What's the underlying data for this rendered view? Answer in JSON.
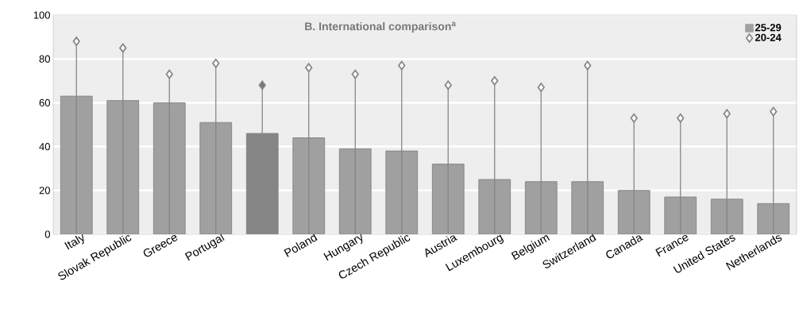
{
  "chart_data": {
    "type": "bar",
    "title": "B. International comparison$^{a}$",
    "categories": [
      "Italy",
      "Slovak Republic",
      "Greece",
      "Portugal",
      null,
      "Poland",
      "Hungary",
      "Czech Republic",
      "Austria",
      "Luxembourg",
      "Belgium",
      "Switzerland",
      "Canada",
      "France",
      "United States",
      "Netherlands"
    ],
    "series": [
      {
        "name": "25-29",
        "color": "#a0a0a0",
        "colors": [
          "#a0a0a0",
          "#a0a0a0",
          "#a0a0a0",
          "#a0a0a0",
          "#858585",
          "#a0a0a0",
          "#a0a0a0",
          "#a0a0a0",
          "#a0a0a0",
          "#a0a0a0",
          "#a0a0a0",
          "#a0a0a0",
          "#a0a0a0",
          "#a0a0a0",
          "#a0a0a0",
          "#a0a0a0"
        ],
        "values": [
          63,
          61,
          60,
          51,
          46,
          44,
          39,
          38,
          32,
          25,
          24,
          24,
          20,
          17,
          16,
          14
        ]
      },
      {
        "name": "20-24",
        "type": "lollipop",
        "color": "#888888",
        "colors": [
          "#ffffff",
          "#ffffff",
          "#ffffff",
          "#ffffff",
          "#777777",
          "#ffffff",
          "#ffffff",
          "#ffffff",
          "#ffffff",
          "#ffffff",
          "#ffffff",
          "#ffffff",
          "#ffffff",
          "#ffffff",
          "#ffffff",
          "#ffffff"
        ],
        "values": [
          88,
          85,
          73,
          78,
          68,
          76,
          73,
          77,
          68,
          70,
          67,
          77,
          53,
          53,
          55,
          56
        ]
      }
    ],
    "ylim": [
      0,
      100
    ],
    "yticks": [
      0,
      20,
      40,
      60,
      80,
      100
    ],
    "grid": "y",
    "legend": "top right",
    "marker": "diamond"
  }
}
